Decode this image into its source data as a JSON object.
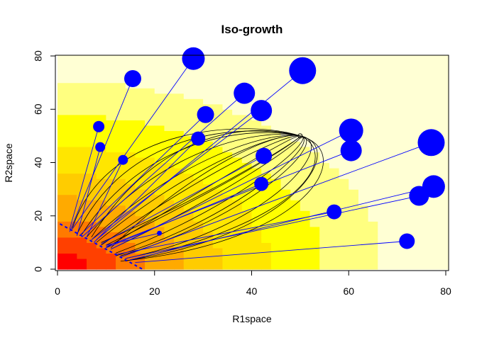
{
  "chart_data": {
    "type": "scatter",
    "title": "Iso-growth",
    "xlabel": "R1space",
    "ylabel": "R2space",
    "xlim": [
      0,
      80
    ],
    "ylim": [
      0,
      80
    ],
    "xticks": [
      "0",
      "20",
      "40",
      "60",
      "80"
    ],
    "yticks": [
      "0",
      "20",
      "40",
      "60",
      "80"
    ],
    "legend": "none",
    "colors": {
      "points": "#0000ff",
      "lines": "#0000ff",
      "curves": "#000000",
      "background_ramp": [
        "#ff0000",
        "#ff4a00",
        "#ff8000",
        "#ffa800",
        "#ffc800",
        "#ffe600",
        "#ffff00",
        "#ffff66",
        "#ffffcc"
      ]
    },
    "background_field": {
      "description": "heat-map ramp decreasing from origin",
      "levels": [
        {
          "r": 6,
          "color": "#ff0000"
        },
        {
          "r": 12,
          "color": "#ff4000"
        },
        {
          "r": 18,
          "color": "#ff7a00"
        },
        {
          "r": 26,
          "color": "#ffaa00"
        },
        {
          "r": 34,
          "color": "#ffcc00"
        },
        {
          "r": 44,
          "color": "#ffe600"
        },
        {
          "r": 55,
          "color": "#ffff00"
        },
        {
          "r": 67,
          "color": "#ffff80"
        },
        {
          "r": 200,
          "color": "#ffffd4"
        }
      ]
    },
    "focal_point": {
      "x": 50,
      "y": 50
    },
    "dashed_line": {
      "x": [
        0.5,
        17.5
      ],
      "y": [
        17,
        0
      ]
    },
    "points": [
      {
        "x": 28,
        "y": 79,
        "size": 16,
        "base_x": 3,
        "base_y": 15
      },
      {
        "x": 15.5,
        "y": 71.5,
        "size": 12,
        "base_x": 2.5,
        "base_y": 14
      },
      {
        "x": 8.5,
        "y": 53.5,
        "size": 8,
        "base_x": 2.5,
        "base_y": 15
      },
      {
        "x": 8.8,
        "y": 45.8,
        "size": 7,
        "base_x": 4,
        "base_y": 12.5
      },
      {
        "x": 13.5,
        "y": 41,
        "size": 7,
        "base_x": 6,
        "base_y": 12
      },
      {
        "x": 21,
        "y": 13.5,
        "size": 3.5,
        "base_x": 10,
        "base_y": 9
      },
      {
        "x": 50.5,
        "y": 74.5,
        "size": 19,
        "base_x": 8,
        "base_y": 11
      },
      {
        "x": 38.5,
        "y": 66,
        "size": 15,
        "base_x": 5,
        "base_y": 12
      },
      {
        "x": 42,
        "y": 59.5,
        "size": 15,
        "base_x": 7,
        "base_y": 11
      },
      {
        "x": 30.5,
        "y": 58,
        "size": 12,
        "base_x": 4.5,
        "base_y": 12.5
      },
      {
        "x": 29,
        "y": 49,
        "size": 10,
        "base_x": 7.5,
        "base_y": 10
      },
      {
        "x": 42.5,
        "y": 42.5,
        "size": 11.5,
        "base_x": 9,
        "base_y": 9.5
      },
      {
        "x": 42,
        "y": 32,
        "size": 10,
        "base_x": 10,
        "base_y": 8
      },
      {
        "x": 60.5,
        "y": 52,
        "size": 17,
        "base_x": 11,
        "base_y": 7.5
      },
      {
        "x": 60.5,
        "y": 44.5,
        "size": 15,
        "base_x": 10,
        "base_y": 8.5
      },
      {
        "x": 57,
        "y": 21.5,
        "size": 10.5,
        "base_x": 12,
        "base_y": 5.5
      },
      {
        "x": 77,
        "y": 47.5,
        "size": 19,
        "base_x": 13,
        "base_y": 4.5
      },
      {
        "x": 77.5,
        "y": 31,
        "size": 16,
        "base_x": 15,
        "base_y": 3.5
      },
      {
        "x": 74.5,
        "y": 27.5,
        "size": 14,
        "base_x": 14,
        "base_y": 4
      },
      {
        "x": 72,
        "y": 10.5,
        "size": 11,
        "base_x": 16,
        "base_y": 2.5
      }
    ],
    "curves": [
      {
        "x0": 3,
        "y0": 15,
        "c1x": 10,
        "c1y": 55,
        "c2x": 40,
        "c2y": 56
      },
      {
        "x0": 4,
        "y0": 13,
        "c1x": 14,
        "c1y": 52,
        "c2x": 38,
        "c2y": 55
      },
      {
        "x0": 5,
        "y0": 13,
        "c1x": 18,
        "c1y": 50,
        "c2x": 40,
        "c2y": 54
      },
      {
        "x0": 6,
        "y0": 12,
        "c1x": 22,
        "c1y": 46,
        "c2x": 42,
        "c2y": 53
      },
      {
        "x0": 7,
        "y0": 11,
        "c1x": 25,
        "c1y": 42,
        "c2x": 44,
        "c2y": 52
      },
      {
        "x0": 8,
        "y0": 10,
        "c1x": 28,
        "c1y": 40,
        "c2x": 46,
        "c2y": 52
      },
      {
        "x0": 9,
        "y0": 9,
        "c1x": 30,
        "c1y": 36,
        "c2x": 47,
        "c2y": 51
      },
      {
        "x0": 10,
        "y0": 8,
        "c1x": 32,
        "c1y": 32,
        "c2x": 49,
        "c2y": 51
      },
      {
        "x0": 11,
        "y0": 7.5,
        "c1x": 35,
        "c1y": 28,
        "c2x": 52,
        "c2y": 50
      },
      {
        "x0": 12,
        "y0": 6,
        "c1x": 38,
        "c1y": 24,
        "c2x": 54,
        "c2y": 50
      },
      {
        "x0": 13,
        "y0": 5,
        "c1x": 41,
        "c1y": 20,
        "c2x": 56,
        "c2y": 49
      },
      {
        "x0": 14,
        "y0": 4,
        "c1x": 45,
        "c1y": 16,
        "c2x": 58,
        "c2y": 48
      },
      {
        "x0": 15,
        "y0": 3.5,
        "c1x": 49,
        "c1y": 13,
        "c2x": 60,
        "c2y": 46
      },
      {
        "x0": 13,
        "y0": 3,
        "c1x": 52,
        "c1y": 10,
        "c2x": 62,
        "c2y": 44
      },
      {
        "x0": 9,
        "y0": 10,
        "c1x": 34,
        "c1y": 30,
        "c2x": 51,
        "c2y": 50
      },
      {
        "x0": 7,
        "y0": 12,
        "c1x": 20,
        "c1y": 50,
        "c2x": 38,
        "c2y": 56
      },
      {
        "x0": 11,
        "y0": 8,
        "c1x": 28,
        "c1y": 38,
        "c2x": 45,
        "c2y": 52
      },
      {
        "x0": 12,
        "y0": 5,
        "c1x": 36,
        "c1y": 18,
        "c2x": 55,
        "c2y": 48
      },
      {
        "x0": 10,
        "y0": 9,
        "c1x": 40,
        "c1y": 36,
        "c2x": 50,
        "c2y": 49
      },
      {
        "x0": 14,
        "y0": 3,
        "c1x": 55,
        "c1y": 20,
        "c2x": 57,
        "c2y": 45
      }
    ]
  }
}
